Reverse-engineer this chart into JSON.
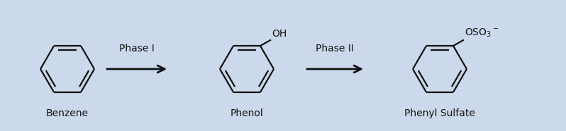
{
  "background_color": "#ccd8ec",
  "arrow_color": "#111111",
  "text_color": "#111111",
  "molecule_color": "#111111",
  "label_fontsize": 10,
  "phase_fontsize": 10,
  "molecule_labels": [
    "Benzene",
    "Phenol",
    "Phenyl Sulfate"
  ],
  "phase_labels": [
    "Phase I",
    "Phase II"
  ],
  "figsize": [
    7.98,
    1.86
  ],
  "dpi": 100
}
